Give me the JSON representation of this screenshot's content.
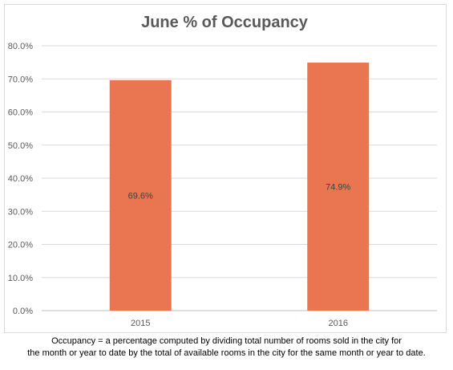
{
  "chart_data": {
    "type": "bar",
    "title": "June % of Occupancy",
    "categories": [
      "2015",
      "2016"
    ],
    "series": [
      {
        "values": [
          69.6,
          74.9
        ],
        "color": "#e97650"
      }
    ],
    "data_labels": [
      "69.6%",
      "74.9%"
    ],
    "xlabel": "",
    "ylabel": "",
    "ylim": [
      0,
      80
    ],
    "yticks": [
      "0.0%",
      "10.0%",
      "20.0%",
      "30.0%",
      "40.0%",
      "50.0%",
      "60.0%",
      "70.0%",
      "80.0%"
    ],
    "grid": true,
    "legend": "none"
  },
  "footnote": {
    "line1": "Occupancy = a percentage computed by dividing total number of rooms sold in the city for",
    "line2": "the month or year to date by the total of available rooms in the city for the same month or year to date."
  }
}
